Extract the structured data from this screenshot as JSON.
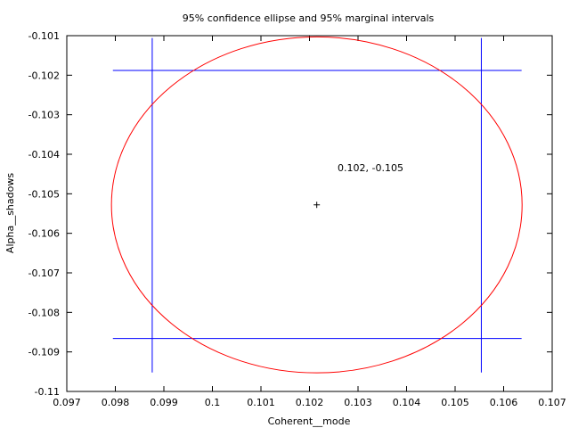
{
  "chart_data": {
    "type": "scatter",
    "title": "95% confidence ellipse and 95% marginal intervals",
    "xlabel": "Coherent__mode",
    "ylabel": "Alpha__shadows",
    "xlim": [
      0.097,
      0.107
    ],
    "ylim": [
      -0.11,
      -0.101
    ],
    "x_ticks": [
      0.097,
      0.098,
      0.099,
      0.1,
      0.101,
      0.102,
      0.103,
      0.104,
      0.105,
      0.106,
      0.107
    ],
    "x_tick_labels": [
      "0.097",
      "0.098",
      "0.099",
      "0.1",
      "0.101",
      "0.102",
      "0.103",
      "0.104",
      "0.105",
      "0.106",
      "0.107"
    ],
    "y_ticks": [
      -0.101,
      -0.102,
      -0.103,
      -0.104,
      -0.105,
      -0.106,
      -0.107,
      -0.108,
      -0.109,
      -0.11
    ],
    "y_tick_labels": [
      "-0.101",
      "-0.102",
      "-0.103",
      "-0.104",
      "-0.105",
      "-0.106",
      "-0.107",
      "-0.108",
      "-0.109",
      "-0.11"
    ],
    "grid": false,
    "center": {
      "x": 0.10215,
      "y": -0.10528
    },
    "center_label": "0.102, -0.105",
    "ellipse": {
      "cx": 0.10215,
      "cy": -0.10528,
      "rx": 0.00423,
      "ry": 0.00425,
      "color": "#ff0000"
    },
    "marginal_intervals": {
      "color": "#0000ff",
      "x_low": 0.09876,
      "x_high": 0.10554,
      "y_low": -0.10866,
      "y_high": -0.10188,
      "h_line_x_range": [
        0.09795,
        0.10637
      ],
      "v_line_y_range": [
        -0.10952,
        -0.10106
      ]
    }
  }
}
